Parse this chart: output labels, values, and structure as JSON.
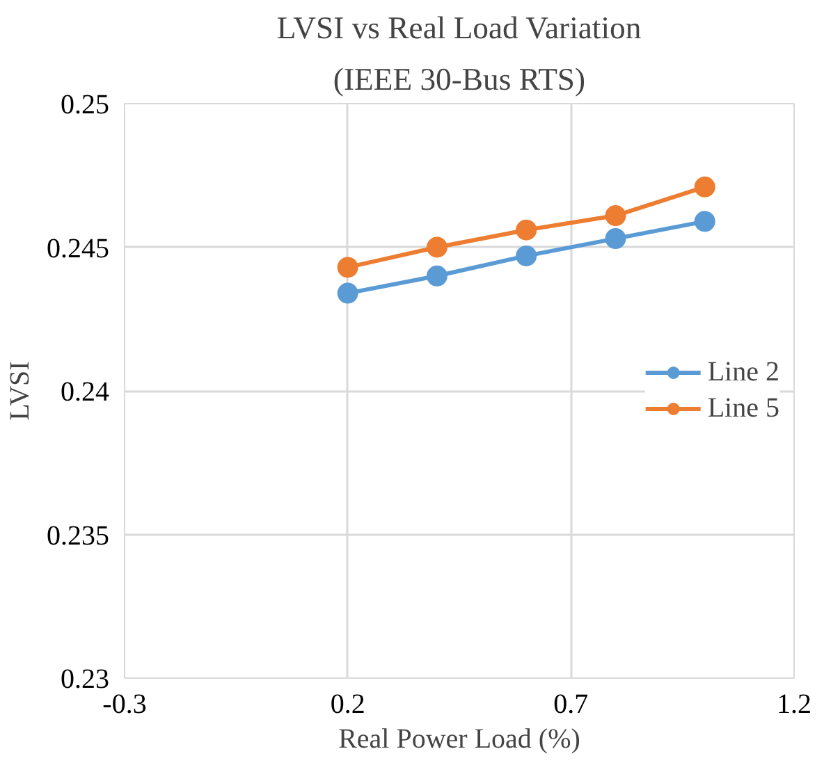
{
  "chart_data": {
    "type": "line",
    "title": "LVSI vs Real Load Variation",
    "subtitle": "(IEEE 30-Bus RTS)",
    "xlabel": "Real Power Load (%)",
    "ylabel": "LVSI",
    "x": [
      0.2,
      0.4,
      0.6,
      0.8,
      1.0
    ],
    "series": [
      {
        "name": "Line 2",
        "color": "#5b9bd5",
        "values": [
          0.2434,
          0.244,
          0.2447,
          0.2453,
          0.2459
        ]
      },
      {
        "name": "Line 5",
        "color": "#ed7d31",
        "values": [
          0.2443,
          0.245,
          0.2456,
          0.2461,
          0.2471
        ]
      }
    ],
    "xlim": [
      -0.3,
      1.2
    ],
    "xticks": [
      -0.3,
      0.2,
      0.7,
      1.2
    ],
    "ylim": [
      0.23,
      0.25
    ],
    "yticks": [
      0.23,
      0.235,
      0.24,
      0.245,
      0.25
    ],
    "grid": true,
    "legend": "right",
    "marker": "circle",
    "line_style": "solid"
  }
}
